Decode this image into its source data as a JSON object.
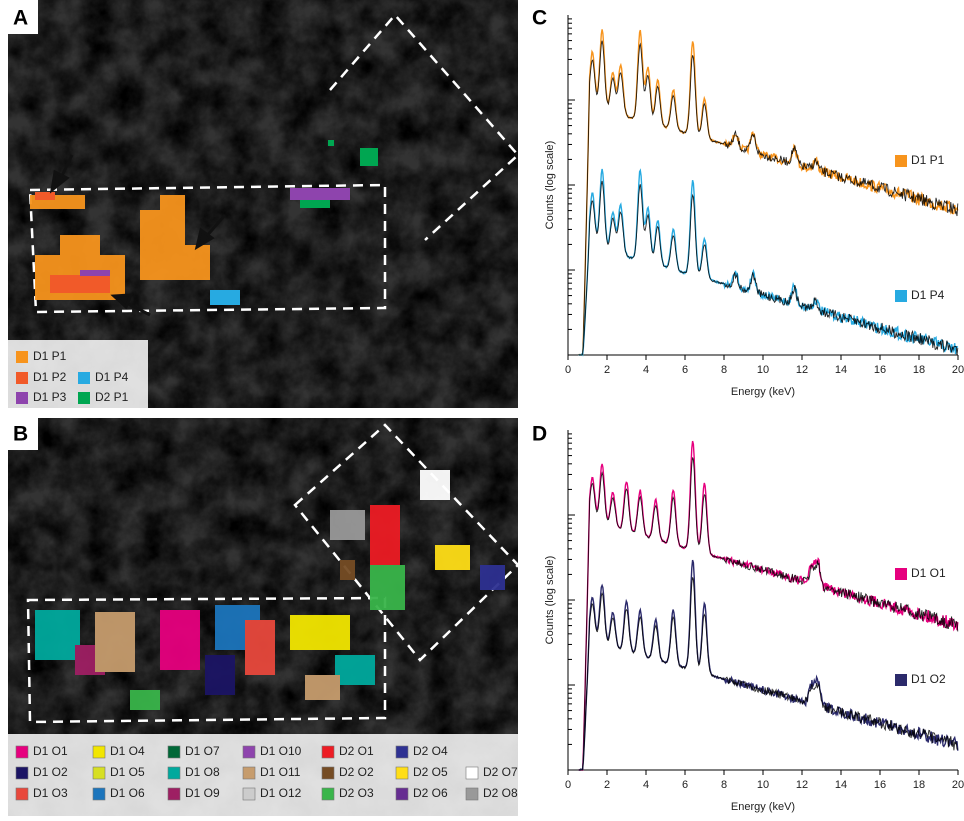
{
  "panels": [
    {
      "label": "A",
      "legend": [
        {
          "name": "D1 P1",
          "color": "#f7941d"
        },
        {
          "name": "D1 P2",
          "color": "#f15a29"
        },
        {
          "name": "D1 P4",
          "color": "#27aae1"
        },
        {
          "name": "D1 P3",
          "color": "#8e44ad"
        },
        {
          "name": "D2 P1",
          "color": "#00a651"
        }
      ]
    },
    {
      "label": "B",
      "legend": [
        {
          "name": "D1 O1",
          "color": "#e6007e"
        },
        {
          "name": "D1 O4",
          "color": "#f2e600"
        },
        {
          "name": "D1 O7",
          "color": "#006837"
        },
        {
          "name": "D1 O10",
          "color": "#8e44ad"
        },
        {
          "name": "D2 O1",
          "color": "#ed1c24"
        },
        {
          "name": "D2 O4",
          "color": "#2e3192"
        },
        {
          "name": "D1 O2",
          "color": "#1b1464"
        },
        {
          "name": "D1 O5",
          "color": "#d7df23"
        },
        {
          "name": "D1 O8",
          "color": "#00a99d"
        },
        {
          "name": "D1 O11",
          "color": "#c69c6d"
        },
        {
          "name": "D2 O2",
          "color": "#754c24"
        },
        {
          "name": "D2 O5",
          "color": "#ffde17"
        },
        {
          "name": "D2 O7",
          "color": "#ffffff"
        },
        {
          "name": "D1 O3",
          "color": "#e8483c"
        },
        {
          "name": "D1 O6",
          "color": "#1c75bc"
        },
        {
          "name": "D1 O9",
          "color": "#9e1f63"
        },
        {
          "name": "D1 O12",
          "color": "#cccccc"
        },
        {
          "name": "D2 O3",
          "color": "#39b54a"
        },
        {
          "name": "D2 O6",
          "color": "#662d91"
        },
        {
          "name": "D2 O8",
          "color": "#999999"
        }
      ]
    }
  ],
  "charts": [
    {
      "label": "C",
      "y_label": "Counts (log scale)",
      "x_label": "Energy (keV)",
      "xticks": [
        0,
        2,
        4,
        6,
        8,
        10,
        12,
        14,
        16,
        18,
        20
      ],
      "series": [
        {
          "name": "D1 P1",
          "color": "#f7941d"
        },
        {
          "name": "D1 P4",
          "color": "#27aae1"
        }
      ]
    },
    {
      "label": "D",
      "y_label": "Counts (log scale)",
      "x_label": "Energy (keV)",
      "xticks": [
        0,
        2,
        4,
        6,
        8,
        10,
        12,
        14,
        16,
        18,
        20
      ],
      "series": [
        {
          "name": "D1 O1",
          "color": "#e6007e"
        },
        {
          "name": "D1 O2",
          "color": "#2b2a6b"
        }
      ]
    }
  ]
}
